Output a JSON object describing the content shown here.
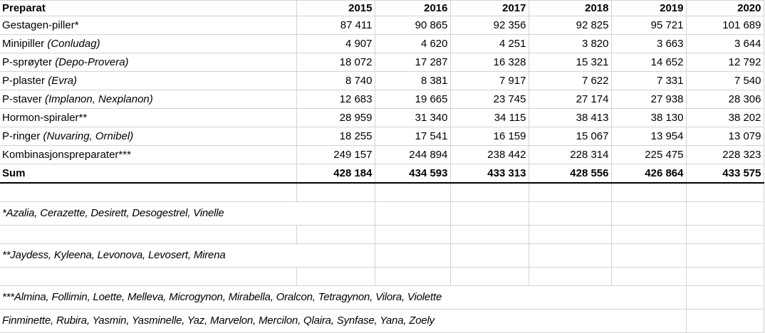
{
  "header": {
    "label": "Preparat",
    "years": [
      "2015",
      "2016",
      "2017",
      "2018",
      "2019",
      "2020"
    ]
  },
  "rows": [
    {
      "name": "Gestagen-piller*",
      "brands": "",
      "values": [
        "87 411",
        "90 865",
        "92 356",
        "92 825",
        "95 721",
        "101 689"
      ]
    },
    {
      "name": "Minipiller ",
      "brands": "(Conludag)",
      "values": [
        "4 907",
        "4 620",
        "4 251",
        "3 820",
        "3 663",
        "3 644"
      ]
    },
    {
      "name": "P-sprøyter ",
      "brands": "(Depo-Provera)",
      "values": [
        "18 072",
        "17 287",
        "16 328",
        "15 321",
        "14 652",
        "12 792"
      ]
    },
    {
      "name": "P-plaster ",
      "brands": "(Evra)",
      "values": [
        "8 740",
        "8 381",
        "7 917",
        "7 622",
        "7 331",
        "7 540"
      ]
    },
    {
      "name": "P-staver ",
      "brands": "(Implanon, Nexplanon)",
      "values": [
        "12 683",
        "19 665",
        "23 745",
        "27 174",
        "27 938",
        "28 306"
      ]
    },
    {
      "name": "Hormon-spiraler**",
      "brands": "",
      "values": [
        "28 959",
        "31 340",
        "34 115",
        "38 413",
        "38 130",
        "38 202"
      ]
    },
    {
      "name": "P-ringer ",
      "brands": "(Nuvaring, Ornibel)",
      "values": [
        "18 255",
        "17 541",
        "16 159",
        "15 067",
        "13 954",
        "13 079"
      ]
    },
    {
      "name": "Kombinasjonspreparater***",
      "brands": "",
      "values": [
        "249 157",
        "244 894",
        "238 442",
        "228 314",
        "225 475",
        "228 323"
      ]
    }
  ],
  "sum": {
    "label": "Sum",
    "values": [
      "428 184",
      "434 593",
      "433 313",
      "428 556",
      "426 864",
      "433 575"
    ]
  },
  "footnotes": [
    "*Azalia, Cerazette, Desirett, Desogestrel, Vinelle",
    "**Jaydess, Kyleena, Levonova, Levosert, Mirena",
    "***Almina, Follimin, Loette, Melleva, Microgynon, Mirabella, Oralcon, Tetragynon, Vilora, Violette",
    "Finminette, Rubira, Yasmin, Yasminelle, Yaz, Marvelon, Mercilon, Qlaira, Synfase, Yana, Zoely"
  ]
}
